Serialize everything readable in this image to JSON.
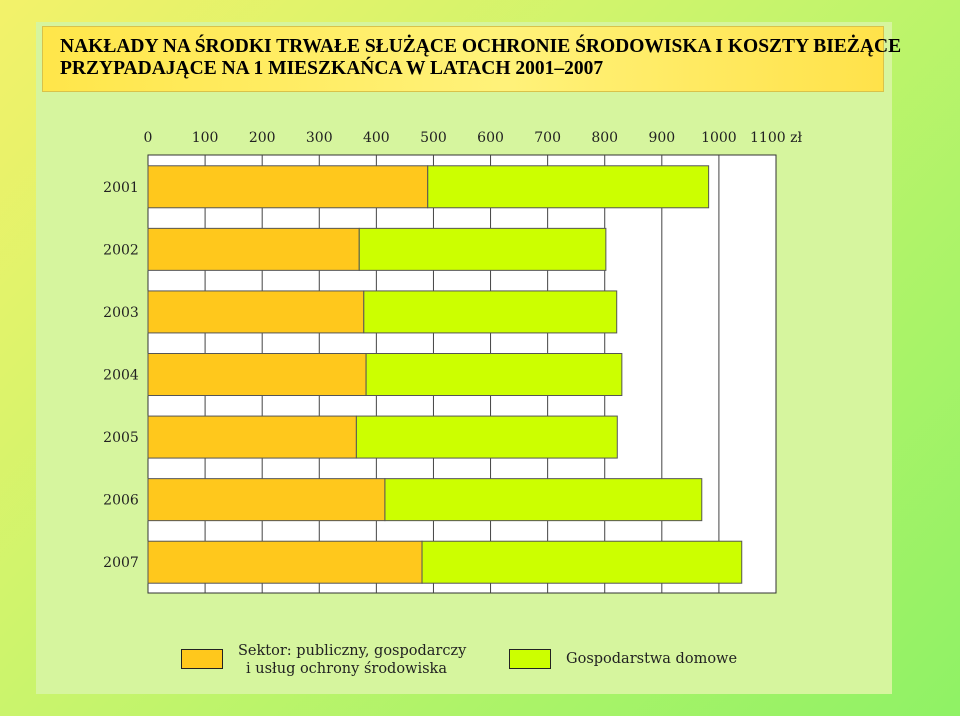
{
  "title_lines": [
    "NAKŁADY NA ŚRODKI TRWAŁE SŁUŻĄCE OCHRONIE ŚRODOWISKA  I KOSZTY BIEŻĄCE",
    "PRZYPADAJĄCE NA 1 MIESZKAŃCA W LATACH 2001–2007"
  ],
  "chart_data": {
    "type": "bar",
    "orientation": "horizontal",
    "stacked": true,
    "categories": [
      "2001",
      "2002",
      "2003",
      "2004",
      "2005",
      "2006",
      "2007"
    ],
    "series": [
      {
        "name": "Sektor: publiczny, gospodarczy i usług ochrony środowiska",
        "color": "#ffc81c",
        "values": [
          490,
          370,
          378,
          382,
          365,
          415,
          480
        ]
      },
      {
        "name": "Gospodarstwa domowe",
        "color": "#ccff00",
        "values": [
          492,
          432,
          443,
          448,
          457,
          555,
          560
        ]
      }
    ],
    "x_ticks": [
      "0",
      "100",
      "200",
      "300",
      "400",
      "500",
      "600",
      "700",
      "800",
      "900",
      "1000",
      "1100 zł"
    ],
    "xlim": [
      0,
      1100
    ],
    "grid": true,
    "legend_position": "bottom"
  },
  "legend": {
    "item1_lines": [
      "Sektor: publiczny, gospodarczy",
      "i usług ochrony środowiska"
    ],
    "item2_lines": [
      "Gospodarstwa domowe"
    ]
  }
}
